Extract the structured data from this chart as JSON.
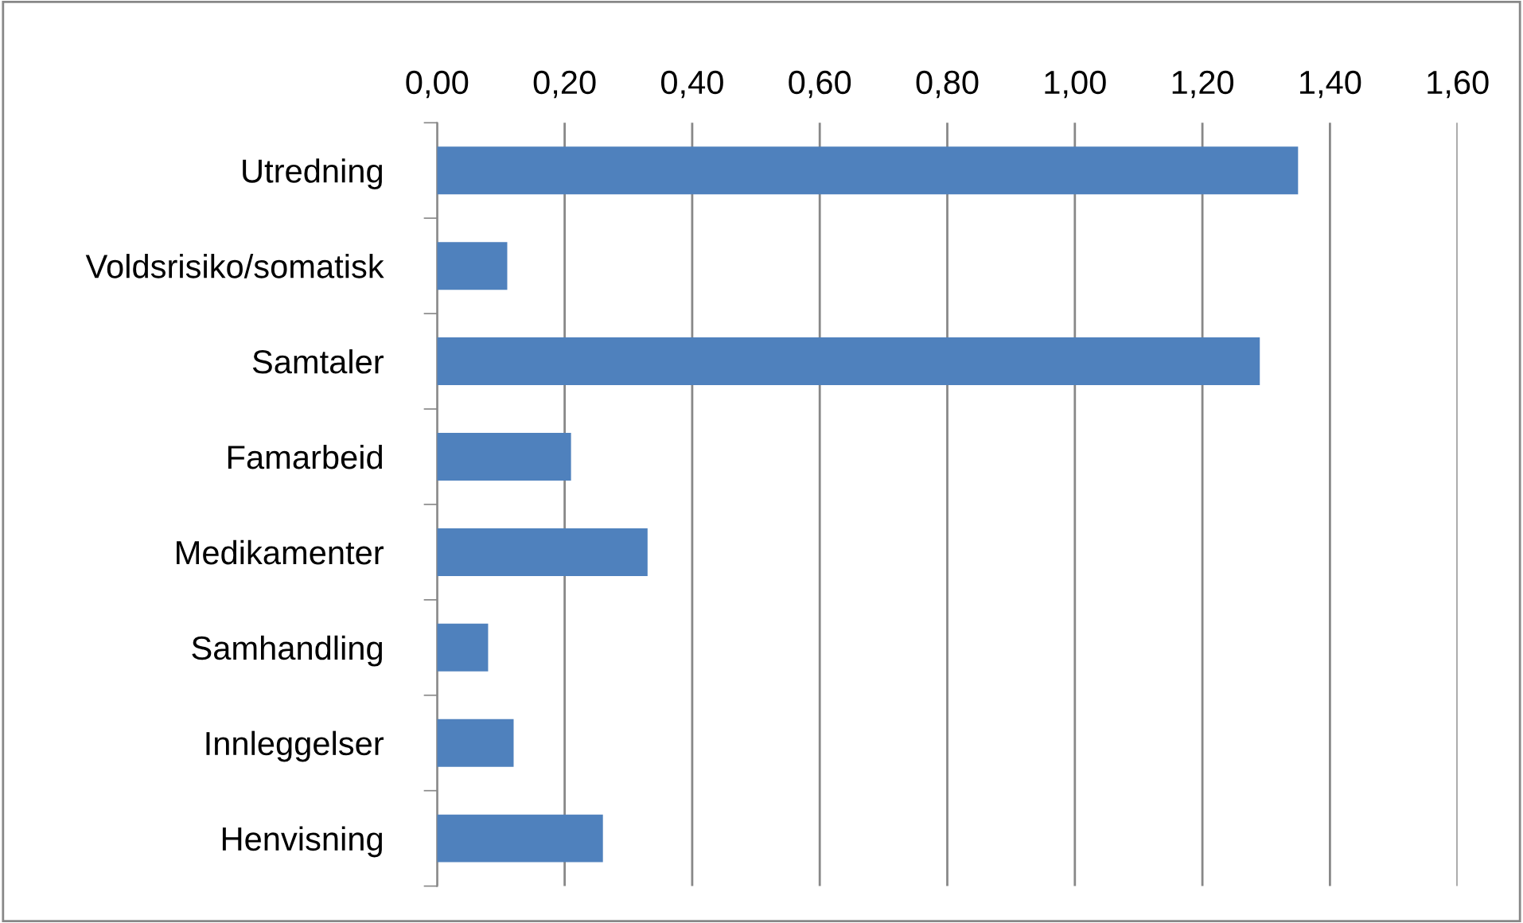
{
  "chart_data": {
    "type": "bar",
    "orientation": "horizontal",
    "categories": [
      "Utredning",
      "Voldsrisiko/somatisk",
      "Samtaler",
      "Famarbeid",
      "Medikamenter",
      "Samhandling",
      "Innleggelser",
      "Henvisning"
    ],
    "values": [
      1.35,
      0.11,
      1.29,
      0.21,
      0.33,
      0.08,
      0.12,
      0.26
    ],
    "color": "#4f81bd",
    "xlim": [
      0,
      1.6
    ],
    "xticks": [
      {
        "value": 0,
        "label": "0,00"
      },
      {
        "value": 0.2,
        "label": "0,20"
      },
      {
        "value": 0.4,
        "label": "0,40"
      },
      {
        "value": 0.6,
        "label": "0,60"
      },
      {
        "value": 0.8,
        "label": "0,80"
      },
      {
        "value": 1.0,
        "label": "1,00"
      },
      {
        "value": 1.2,
        "label": "1,20"
      },
      {
        "value": 1.4,
        "label": "1,40"
      },
      {
        "value": 1.6,
        "label": "1,60"
      }
    ],
    "grid": "x"
  }
}
